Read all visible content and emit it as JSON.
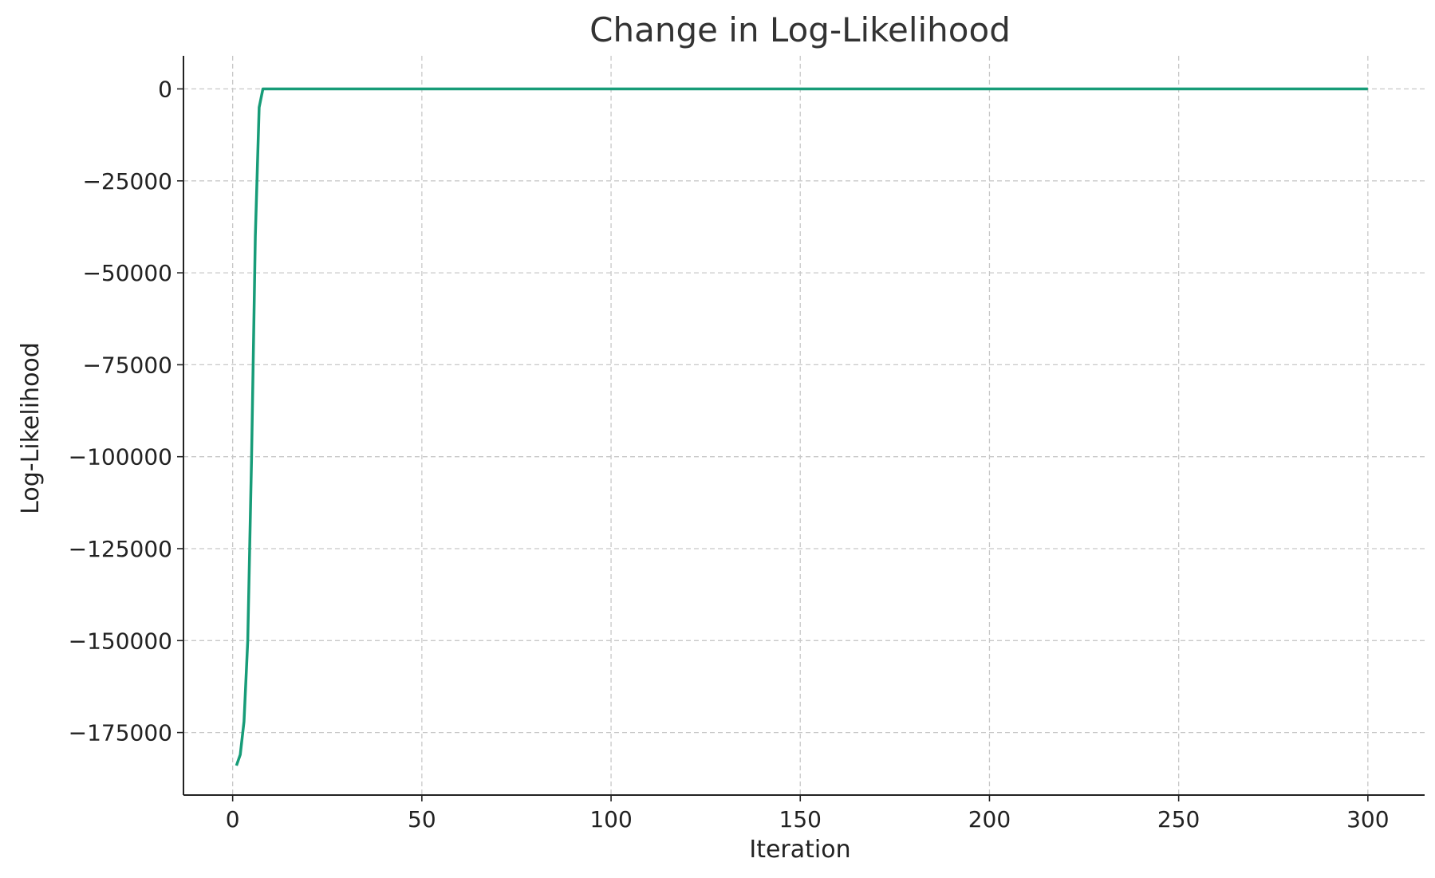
{
  "chart_data": {
    "type": "line",
    "title": "Change in Log-Likelihood",
    "xlabel": "Iteration",
    "ylabel": "Log-Likelihood",
    "xlim": [
      -13,
      315
    ],
    "ylim": [
      -192000,
      9000
    ],
    "xticks": [
      0,
      50,
      100,
      150,
      200,
      250,
      300
    ],
    "yticks": [
      0,
      -25000,
      -50000,
      -75000,
      -100000,
      -125000,
      -150000,
      -175000
    ],
    "xtick_labels": [
      "0",
      "50",
      "100",
      "150",
      "200",
      "250",
      "300"
    ],
    "ytick_labels": [
      "0",
      "−25000",
      "−50000",
      "−75000",
      "−100000",
      "−125000",
      "−150000",
      "−175000"
    ],
    "grid": true,
    "series": [
      {
        "color": "#179c78",
        "x": [
          1,
          2,
          3,
          4,
          5,
          6,
          7,
          8,
          9,
          10,
          20,
          50,
          100,
          150,
          200,
          250,
          300
        ],
        "y": [
          -184000,
          -181000,
          -172000,
          -150000,
          -100000,
          -40000,
          -5000,
          0,
          0,
          0,
          0,
          0,
          0,
          0,
          0,
          0,
          0
        ]
      }
    ]
  }
}
